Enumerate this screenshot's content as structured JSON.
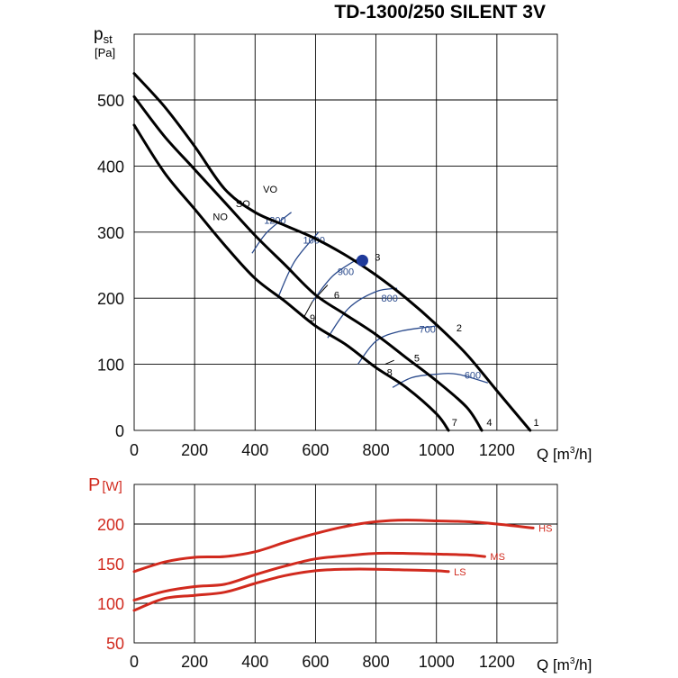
{
  "title": "TD-1300/250 SILENT 3V",
  "chart_data": [
    {
      "type": "line",
      "ylabel_main": "p",
      "ylabel_sub": "st",
      "ylabel_unit": "[Pa]",
      "xlabel_prefix": "Q [m",
      "xlabel_sup": "3",
      "xlabel_suffix": "/h]",
      "xlim": [
        0,
        1400
      ],
      "ylim": [
        0,
        600
      ],
      "x_ticks": [
        "0",
        "200",
        "400",
        "600",
        "800",
        "1000",
        "1200"
      ],
      "y_ticks": [
        "0",
        "100",
        "200",
        "300",
        "400",
        "500"
      ],
      "grid": true,
      "series": [
        {
          "name": "VO",
          "points": [
            [
              0,
              540
            ],
            [
              100,
              490
            ],
            [
              200,
              430
            ],
            [
              300,
              365
            ],
            [
              400,
              330
            ],
            [
              500,
              310
            ],
            [
              600,
              290
            ],
            [
              700,
              265
            ],
            [
              800,
              235
            ],
            [
              900,
              200
            ],
            [
              1000,
              160
            ],
            [
              1100,
              115
            ],
            [
              1200,
              60
            ],
            [
              1310,
              0
            ]
          ]
        },
        {
          "name": "SO",
          "points": [
            [
              0,
              505
            ],
            [
              100,
              445
            ],
            [
              200,
              395
            ],
            [
              300,
              345
            ],
            [
              400,
              295
            ],
            [
              500,
              250
            ],
            [
              600,
              205
            ],
            [
              700,
              175
            ],
            [
              800,
              145
            ],
            [
              900,
              110
            ],
            [
              1000,
              75
            ],
            [
              1100,
              35
            ],
            [
              1150,
              0
            ]
          ]
        },
        {
          "name": "NO",
          "points": [
            [
              0,
              462
            ],
            [
              100,
              390
            ],
            [
              200,
              335
            ],
            [
              300,
              280
            ],
            [
              400,
              230
            ],
            [
              500,
              195
            ],
            [
              600,
              158
            ],
            [
              700,
              130
            ],
            [
              800,
              95
            ],
            [
              900,
              65
            ],
            [
              1000,
              25
            ],
            [
              1040,
              0
            ]
          ]
        }
      ],
      "isolines": [
        {
          "label": "1200",
          "points": [
            [
              390,
              268
            ],
            [
              440,
              300
            ],
            [
              520,
              330
            ]
          ]
        },
        {
          "label": "1000",
          "points": [
            [
              475,
              200
            ],
            [
              530,
              255
            ],
            [
              610,
              300
            ]
          ]
        },
        {
          "label": "900",
          "points": [
            [
              590,
              195
            ],
            [
              660,
              235
            ],
            [
              760,
              265
            ]
          ]
        },
        {
          "label": "800",
          "points": [
            [
              640,
              140
            ],
            [
              710,
              185
            ],
            [
              800,
              210
            ],
            [
              870,
              215
            ]
          ]
        },
        {
          "label": "700",
          "points": [
            [
              740,
              100
            ],
            [
              800,
              135
            ],
            [
              880,
              150
            ],
            [
              1000,
              158
            ]
          ]
        },
        {
          "label": "600",
          "points": [
            [
              855,
              65
            ],
            [
              920,
              80
            ],
            [
              1000,
              85
            ],
            [
              1070,
              85
            ],
            [
              1170,
              72
            ]
          ]
        }
      ],
      "operating_points": [
        {
          "label": "1",
          "x": 1330,
          "y": 12
        },
        {
          "label": "2",
          "x": 1075,
          "y": 155
        },
        {
          "label": "3",
          "x": 805,
          "y": 262
        },
        {
          "label": "4",
          "x": 1175,
          "y": 12
        },
        {
          "label": "5",
          "x": 935,
          "y": 110
        },
        {
          "label": "6",
          "x": 670,
          "y": 205
        },
        {
          "label": "7",
          "x": 1060,
          "y": 12
        },
        {
          "label": "8",
          "x": 845,
          "y": 88
        },
        {
          "label": "9",
          "x": 590,
          "y": 170
        }
      ],
      "series_labels": [
        {
          "label": "VO",
          "x": 450,
          "y": 360
        },
        {
          "label": "SO",
          "x": 360,
          "y": 338
        },
        {
          "label": "NO",
          "x": 285,
          "y": 318
        }
      ],
      "marker": {
        "x": 755,
        "y": 257,
        "color": "#1f3a9a"
      },
      "colors": {
        "curve": "#000000",
        "isoline": "#2a4a8c"
      }
    },
    {
      "type": "line",
      "ylabel_main": "P",
      "ylabel_unit": "[W]",
      "xlabel_prefix": "Q [m",
      "xlabel_sup": "3",
      "xlabel_suffix": "/h]",
      "xlim": [
        0,
        1400
      ],
      "ylim": [
        50,
        230
      ],
      "x_ticks": [
        "0",
        "200",
        "400",
        "600",
        "800",
        "1000",
        "1200"
      ],
      "y_ticks": [
        "50",
        "100",
        "150",
        "200"
      ],
      "grid": true,
      "series": [
        {
          "name": "HS",
          "points": [
            [
              0,
              140
            ],
            [
              100,
              152
            ],
            [
              200,
              158
            ],
            [
              300,
              159
            ],
            [
              400,
              165
            ],
            [
              500,
              177
            ],
            [
              600,
              188
            ],
            [
              700,
              197
            ],
            [
              800,
              203
            ],
            [
              900,
              205
            ],
            [
              1000,
              204
            ],
            [
              1100,
              203
            ],
            [
              1200,
              200
            ],
            [
              1320,
              195
            ]
          ]
        },
        {
          "name": "MS",
          "points": [
            [
              0,
              104
            ],
            [
              100,
              115
            ],
            [
              200,
              121
            ],
            [
              300,
              124
            ],
            [
              400,
              136
            ],
            [
              500,
              147
            ],
            [
              600,
              156
            ],
            [
              700,
              160
            ],
            [
              800,
              163
            ],
            [
              900,
              163
            ],
            [
              1000,
              162
            ],
            [
              1100,
              161
            ],
            [
              1160,
              159
            ]
          ]
        },
        {
          "name": "LS",
          "points": [
            [
              0,
              91
            ],
            [
              100,
              106
            ],
            [
              200,
              110
            ],
            [
              300,
              114
            ],
            [
              400,
              125
            ],
            [
              500,
              135
            ],
            [
              600,
              141
            ],
            [
              700,
              143
            ],
            [
              800,
              143
            ],
            [
              900,
              142
            ],
            [
              1000,
              141
            ],
            [
              1040,
              140
            ]
          ]
        }
      ],
      "colors": {
        "curve": "#d12a1e"
      }
    }
  ]
}
